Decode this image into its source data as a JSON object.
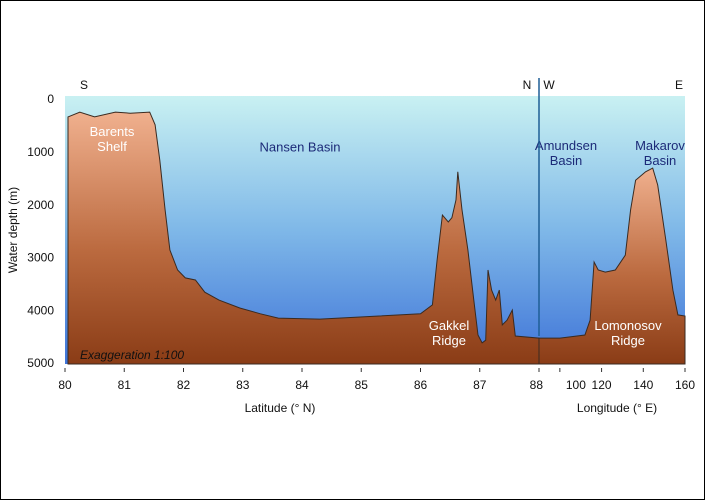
{
  "chart_data": [
    {
      "type": "area",
      "xlabel": "Latitude (° N)",
      "ylabel": "Water depth (m)",
      "xlim": [
        80,
        88
      ],
      "xticks": [
        80,
        81,
        82,
        83,
        84,
        85,
        86,
        87,
        88
      ],
      "ylim": [
        0,
        5000
      ],
      "yticks": [
        0,
        1000,
        2000,
        3000,
        4000,
        5000
      ],
      "invert_y": true,
      "compass": [
        "S",
        "N"
      ],
      "note": "Exaggeration 1:100",
      "annotations": [
        [
          "Barents",
          "Shelf"
        ],
        [
          "Nansen Basin"
        ],
        [
          "Gakkel",
          "Ridge"
        ]
      ],
      "x": [
        80.05,
        80.25,
        80.5,
        80.85,
        81.1,
        81.43,
        81.52,
        81.6,
        81.69,
        81.77,
        81.9,
        82.03,
        82.2,
        82.36,
        82.6,
        82.95,
        83.3,
        83.6,
        84.3,
        85.3,
        86.0,
        86.2,
        86.28,
        86.37,
        86.47,
        86.53,
        86.6,
        86.63,
        86.7,
        86.8,
        86.9,
        86.97,
        87.04,
        87.1,
        87.14,
        87.2,
        87.27,
        87.33,
        87.38,
        87.46,
        87.55,
        87.6,
        88
      ],
      "values": [
        320,
        230,
        320,
        230,
        250,
        230,
        470,
        1140,
        2080,
        2840,
        3220,
        3370,
        3410,
        3640,
        3790,
        3940,
        4050,
        4130,
        4150,
        4090,
        4050,
        3880,
        3030,
        2180,
        2310,
        2230,
        1890,
        1360,
        2080,
        2840,
        3790,
        4450,
        4600,
        4550,
        3220,
        3600,
        3790,
        3600,
        4260,
        4170,
        3980,
        4470,
        4510
      ]
    },
    {
      "type": "area",
      "xlabel": "Longitude (° E)",
      "xlim": [
        90,
        160
      ],
      "xticks": [
        100,
        120,
        140,
        160
      ],
      "ylim": [
        0,
        5000
      ],
      "invert_y": true,
      "compass": [
        "W",
        "E"
      ],
      "annotations": [
        [
          "Amundsen",
          "Basin"
        ],
        [
          "Makarov",
          "Basin"
        ],
        [
          "Lomonosov",
          "Ridge"
        ]
      ],
      "x": [
        90,
        100,
        112,
        114.5,
        116.4,
        118.4,
        121.8,
        126.6,
        131.4,
        133.9,
        136.3,
        141.1,
        144.5,
        146.9,
        150.8,
        154.2,
        156.6,
        160
      ],
      "values": [
        4510,
        4510,
        4450,
        4170,
        3070,
        3220,
        3260,
        3220,
        2940,
        2080,
        1520,
        1360,
        1290,
        1610,
        2650,
        3600,
        4070,
        4090
      ]
    }
  ]
}
